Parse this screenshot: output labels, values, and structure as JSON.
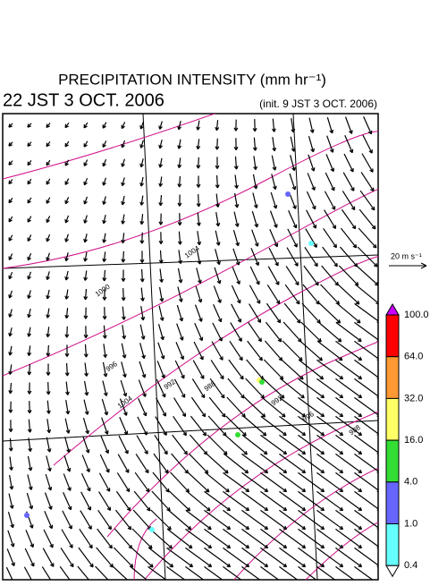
{
  "header": {
    "title": "PRECIPITATION INTENSITY (mm hr⁻¹)",
    "time": "22 JST 3 OCT. 2006",
    "init": "(init. 9 JST 3 OCT. 2006)"
  },
  "wind_reference": "20 m s⁻¹",
  "colorbar": {
    "labels": [
      "100.0",
      "64.0",
      "32.0",
      "16.0",
      "4.0",
      "1.0",
      "0.4"
    ],
    "colors": [
      "#cc00ff",
      "#ff0000",
      "#ff9933",
      "#ffff66",
      "#33dd33",
      "#6666ff",
      "#66ffff",
      "#ffffff"
    ]
  },
  "isobars": [
    "1004",
    "1000",
    "996",
    "992",
    "988",
    "992",
    "996",
    "988",
    "1004"
  ]
}
